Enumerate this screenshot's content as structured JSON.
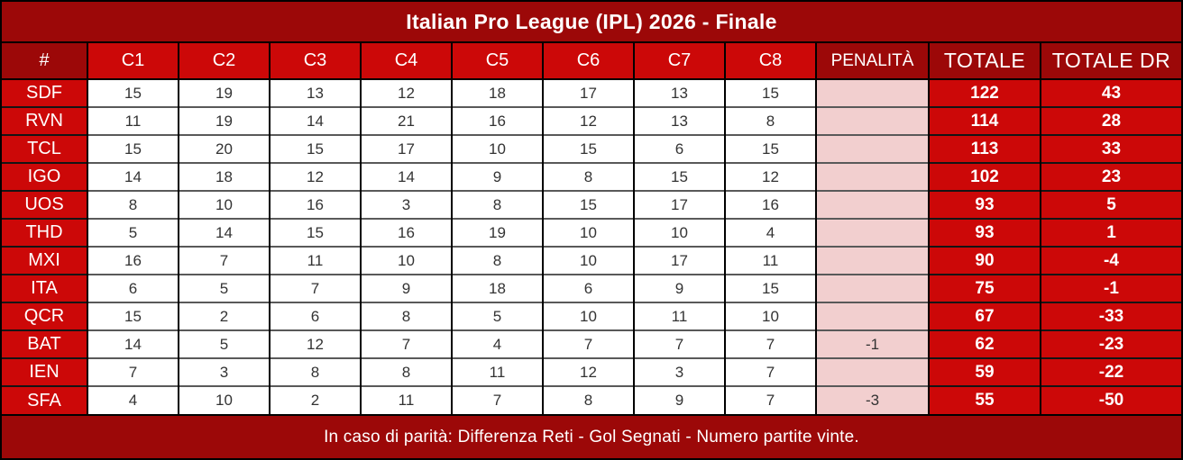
{
  "title": "Italian Pro League (IPL) 2026 - Finale",
  "footer_note": "In caso di parità: Differenza Reti - Gol Segnati - Numero partite vinte.",
  "colors": {
    "dark_red": "#9c0808",
    "bright_red": "#cc0808",
    "penalty_pink": "#f2cfcf",
    "header_text": "#ffffff",
    "score_text": "#333333"
  },
  "table": {
    "rank_header": "#",
    "round_headers": [
      "C1",
      "C2",
      "C3",
      "C4",
      "C5",
      "C6",
      "C7",
      "C8"
    ],
    "penalty_header": "PENALITÀ",
    "total_header": "TOTALE",
    "total_dr_header": "TOTALE DR",
    "rows": [
      {
        "team": "SDF",
        "rounds": [
          15,
          19,
          13,
          12,
          18,
          17,
          13,
          15
        ],
        "penalty": "",
        "total": 122,
        "total_dr": 43
      },
      {
        "team": "RVN",
        "rounds": [
          11,
          19,
          14,
          21,
          16,
          12,
          13,
          8
        ],
        "penalty": "",
        "total": 114,
        "total_dr": 28
      },
      {
        "team": "TCL",
        "rounds": [
          15,
          20,
          15,
          17,
          10,
          15,
          6,
          15
        ],
        "penalty": "",
        "total": 113,
        "total_dr": 33
      },
      {
        "team": "IGO",
        "rounds": [
          14,
          18,
          12,
          14,
          9,
          8,
          15,
          12
        ],
        "penalty": "",
        "total": 102,
        "total_dr": 23
      },
      {
        "team": "UOS",
        "rounds": [
          8,
          10,
          16,
          3,
          8,
          15,
          17,
          16
        ],
        "penalty": "",
        "total": 93,
        "total_dr": 5
      },
      {
        "team": "THD",
        "rounds": [
          5,
          14,
          15,
          16,
          19,
          10,
          10,
          4
        ],
        "penalty": "",
        "total": 93,
        "total_dr": 1
      },
      {
        "team": "MXI",
        "rounds": [
          16,
          7,
          11,
          10,
          8,
          10,
          17,
          11
        ],
        "penalty": "",
        "total": 90,
        "total_dr": -4
      },
      {
        "team": "ITA",
        "rounds": [
          6,
          5,
          7,
          9,
          18,
          6,
          9,
          15
        ],
        "penalty": "",
        "total": 75,
        "total_dr": -1
      },
      {
        "team": "QCR",
        "rounds": [
          15,
          2,
          6,
          8,
          5,
          10,
          11,
          10
        ],
        "penalty": "",
        "total": 67,
        "total_dr": -33
      },
      {
        "team": "BAT",
        "rounds": [
          14,
          5,
          12,
          7,
          4,
          7,
          7,
          7
        ],
        "penalty": "-1",
        "total": 62,
        "total_dr": -23
      },
      {
        "team": "IEN",
        "rounds": [
          7,
          3,
          8,
          8,
          11,
          12,
          3,
          7
        ],
        "penalty": "",
        "total": 59,
        "total_dr": -22
      },
      {
        "team": "SFA",
        "rounds": [
          4,
          10,
          2,
          11,
          7,
          8,
          9,
          7
        ],
        "penalty": "-3",
        "total": 55,
        "total_dr": -50
      }
    ]
  }
}
